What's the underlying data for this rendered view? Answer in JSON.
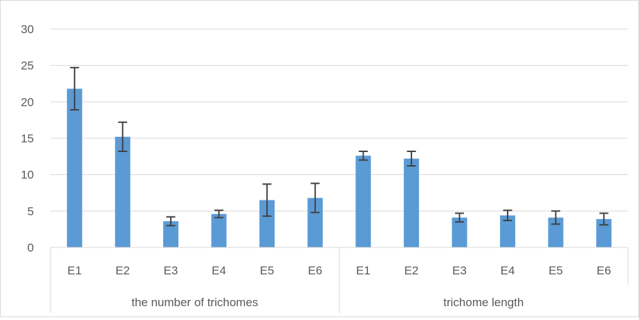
{
  "chart_data": {
    "type": "bar",
    "groups": [
      {
        "label": "the number of trichomes",
        "categories": [
          "E1",
          "E2",
          "E3",
          "E4",
          "E5",
          "E6"
        ],
        "values": [
          21.8,
          15.2,
          3.6,
          4.6,
          6.5,
          6.8
        ],
        "errors": [
          2.9,
          2.0,
          0.6,
          0.5,
          2.2,
          2.0
        ]
      },
      {
        "label": "trichome length",
        "categories": [
          "E1",
          "E2",
          "E3",
          "E4",
          "E5",
          "E6"
        ],
        "values": [
          12.6,
          12.2,
          4.1,
          4.4,
          4.1,
          3.9
        ],
        "errors": [
          0.6,
          1.0,
          0.6,
          0.7,
          0.9,
          0.8
        ]
      }
    ],
    "ylim": [
      0,
      30
    ],
    "yticks": [
      0,
      5,
      10,
      15,
      20,
      25,
      30
    ],
    "grid": true,
    "legend": "none",
    "title": "",
    "xlabel": "",
    "ylabel": "",
    "colors": {
      "bar": "#5b9bd5",
      "error_bar": "#404040",
      "grid": "#d9d9d9",
      "text": "#595959"
    }
  }
}
